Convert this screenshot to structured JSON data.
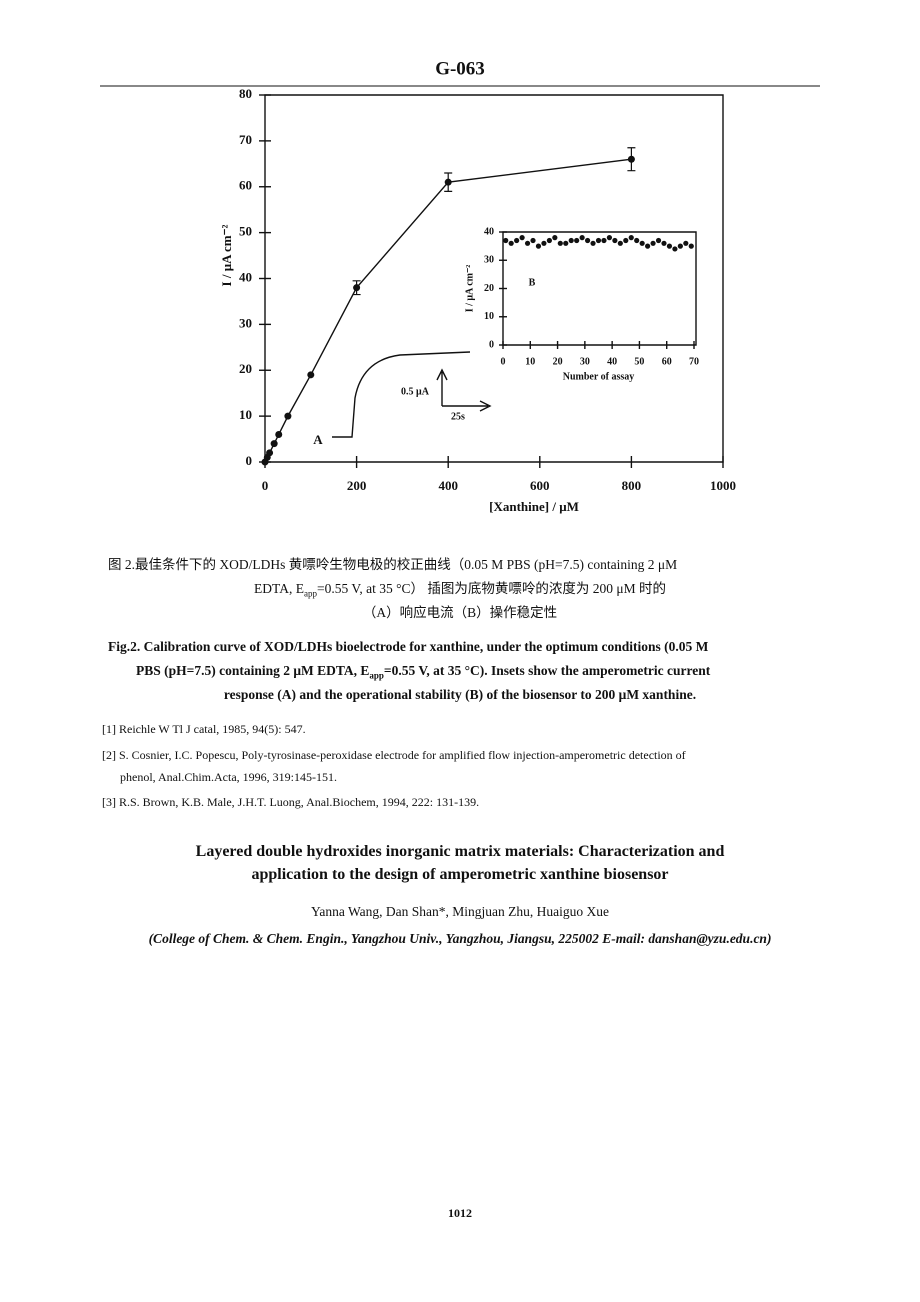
{
  "header": {
    "code": "G-063"
  },
  "chart_data": [
    {
      "type": "line",
      "x_label": "[Xanthine] / μM",
      "y_label": "I / μA cm⁻²",
      "x": [
        0,
        5,
        10,
        20,
        30,
        50,
        100,
        200,
        400,
        800
      ],
      "series": [
        {
          "color": "#111111",
          "values": [
            0,
            1,
            2,
            4,
            6,
            10,
            19,
            38,
            61,
            66
          ],
          "errors": [
            null,
            null,
            null,
            null,
            null,
            null,
            null,
            1.5,
            2,
            2.5
          ]
        }
      ],
      "xlim": [
        0,
        1000
      ],
      "xticks": [
        0,
        200,
        400,
        600,
        800,
        1000
      ],
      "ylim": [
        0,
        80
      ],
      "yticks": [
        0,
        10,
        20,
        30,
        40,
        50,
        60,
        70,
        80
      ],
      "annotations": {
        "inset_a": "A",
        "current_scale": "0.5 μA",
        "time_scale": "25s",
        "inset_b": "B"
      }
    },
    {
      "type": "scatter",
      "x_label": "Number of assay",
      "y_label": "I / μA cm⁻²",
      "x": [
        1,
        3,
        5,
        7,
        9,
        11,
        13,
        15,
        17,
        19,
        21,
        23,
        25,
        27,
        29,
        31,
        33,
        35,
        37,
        39,
        41,
        43,
        45,
        47,
        49,
        51,
        53,
        55,
        57,
        59,
        61,
        63,
        65,
        67,
        69
      ],
      "series": [
        {
          "color": "#111111",
          "values": [
            37,
            36,
            37,
            38,
            36,
            37,
            35,
            36,
            37,
            38,
            36,
            36,
            37,
            37,
            38,
            37,
            36,
            37,
            37,
            38,
            37,
            36,
            37,
            38,
            37,
            36,
            35,
            36,
            37,
            36,
            35,
            34,
            35,
            36,
            35
          ]
        }
      ],
      "xlim": [
        0,
        70
      ],
      "xticks": [
        0,
        10,
        20,
        30,
        40,
        50,
        60,
        70
      ],
      "ylim": [
        0,
        40
      ],
      "yticks": [
        0,
        10,
        20,
        30,
        40
      ]
    }
  ],
  "caption_zh": [
    [
      "图 2.最佳条件下的 XOD/LDHs 黄嘌呤生物电极的校正曲线（0.05 M PBS (pH=7.5) containing 2 μM"
    ],
    [
      "EDTA, E",
      "app",
      "=0.55 V, at 35 °C） 插图为底物黄嘌呤的浓度为 200 μM 时的"
    ],
    [
      "（A）响应电流（B）操作稳定性"
    ]
  ],
  "caption_en": [
    [
      "Fig.2.",
      " Calibration curve of XOD/LDHs bioelectrode for xanthine, under the optimum conditions (0.05 M"
    ],
    [
      "PBS (pH=7.5) containing 2 μM EDTA, E",
      "app",
      "=0.55 V, at 35 °C). Insets show the amperometric current"
    ],
    [
      "response (A) and the operational stability (B) of the biosensor to 200 μM xanthine."
    ]
  ],
  "references": [
    [
      "[1] Reichle W Tl J catal, 1985, 94(5): 547."
    ],
    [
      "[2] S. Cosnier, I.C. Popescu, Poly-tyrosinase-peroxidase electrode for amplified flow injection-amperometric detection of",
      "phenol, Anal.Chim.Acta, 1996, 319:145-151."
    ],
    [
      "[3] R.S. Brown, K.B. Male, J.H.T. Luong, Anal.Biochem, 1994, 222: 131-139."
    ]
  ],
  "paper": {
    "title": [
      "Layered double hydroxides inorganic matrix materials: Characterization and",
      "application to the design of amperometric xanthine biosensor"
    ],
    "authors": "Yanna Wang, Dan Shan*, Mingjuan Zhu, Huaiguo Xue",
    "affiliation": "(College of Chem. & Chem. Engin., Yangzhou Univ., Yangzhou, Jiangsu, 225002 E-mail: danshan@yzu.edu.cn)"
  },
  "page_number": "1012"
}
